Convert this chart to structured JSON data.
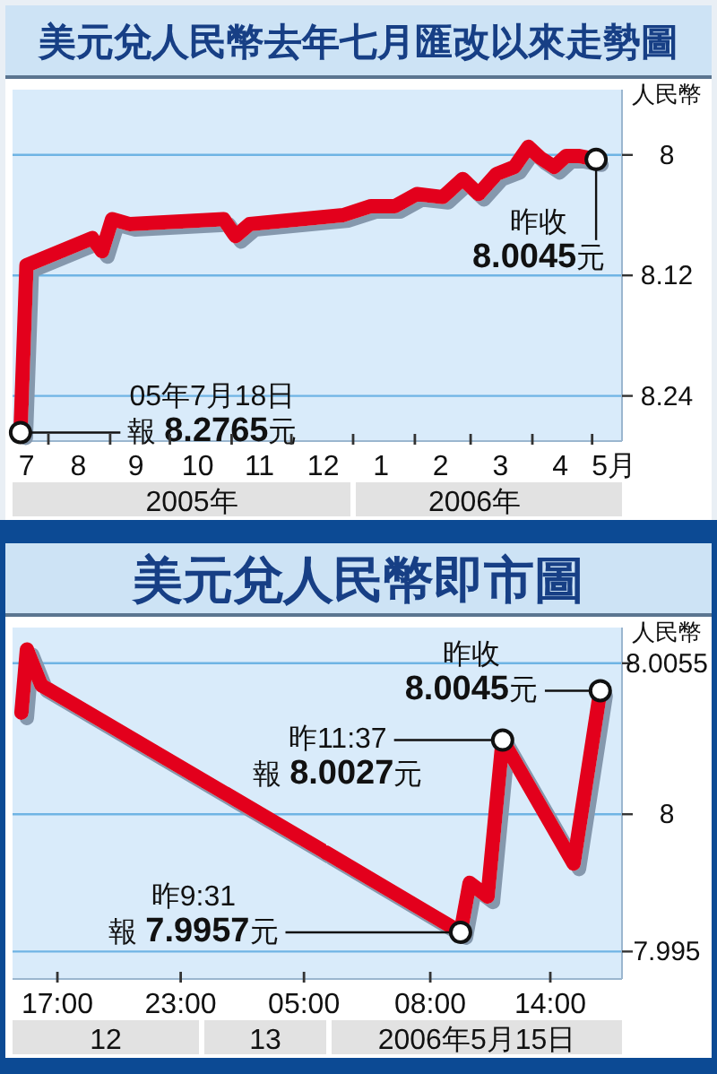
{
  "chart_data": [
    {
      "type": "line",
      "title": "美元兌人民幣去年七月匯改以來走勢圖",
      "ylabel": "人民幣",
      "x": [
        "2005-07-18",
        "2005-07-21",
        "2005-08-23",
        "2005-08-28",
        "2005-09-02",
        "2005-09-11",
        "2005-10-28",
        "2005-11-03",
        "2005-11-10",
        "2005-12-27",
        "2006-01-10",
        "2006-01-22",
        "2006-02-02",
        "2006-02-15",
        "2006-02-25",
        "2006-03-05",
        "2006-03-14",
        "2006-03-23",
        "2006-03-30",
        "2006-04-05",
        "2006-04-12",
        "2006-04-18",
        "2006-04-24",
        "2006-05-03"
      ],
      "series": [
        {
          "color": "#e3001b",
          "values": [
            8.2765,
            8.11,
            8.083,
            8.096,
            8.064,
            8.069,
            8.064,
            8.081,
            8.069,
            8.06,
            8.051,
            8.051,
            8.039,
            8.042,
            8.024,
            8.039,
            8.019,
            8.012,
            7.992,
            8.003,
            8.012,
            8.001,
            8.001,
            8.0045
          ]
        }
      ],
      "xlim": [
        "2005-07-14",
        "2006-05-16"
      ],
      "xticks": [
        {
          "value": "2005-07-21",
          "label": "7"
        },
        {
          "value": "2005-08-01",
          "label": null
        },
        {
          "value": "2005-08-16",
          "label": "8"
        },
        {
          "value": "2005-09-01",
          "label": null
        },
        {
          "value": "2005-09-14",
          "label": "9"
        },
        {
          "value": "2005-10-01",
          "label": null
        },
        {
          "value": "2005-10-15",
          "label": "10"
        },
        {
          "value": "2005-11-01",
          "label": null
        },
        {
          "value": "2005-11-15",
          "label": "11"
        },
        {
          "value": "2005-12-01",
          "label": null
        },
        {
          "value": "2005-12-17",
          "label": "12"
        },
        {
          "value": "2006-01-01",
          "label": null
        },
        {
          "value": "2006-01-15",
          "label": "1"
        },
        {
          "value": "2006-02-01",
          "label": null
        },
        {
          "value": "2006-02-14",
          "label": "2"
        },
        {
          "value": "2006-03-01",
          "label": null
        },
        {
          "value": "2006-03-16",
          "label": "3"
        },
        {
          "value": "2006-04-01",
          "label": null
        },
        {
          "value": "2006-04-15",
          "label": "4"
        },
        {
          "value": "2006-05-01",
          "label": null
        },
        {
          "value": "2006-05-12",
          "label": "5月"
        }
      ],
      "ylim": [
        8.285,
        7.935
      ],
      "yticks": [
        8,
        8.12,
        8.24
      ],
      "grid": "y",
      "x2lim": [
        "2005-07-14",
        "2006-05-16"
      ],
      "x2ticks": [
        {
          "value": "2005-10-12",
          "label": "2005年"
        },
        {
          "value": "2006-01-01",
          "label": null
        },
        {
          "value": "2006-03-03",
          "label": "2006年"
        }
      ],
      "annotations": [
        {
          "text": "05年7月18日報 8.2765元",
          "x": "2005-07-18",
          "y": 8.2765
        },
        {
          "text": "昨收8.0045元",
          "x": "2006-05-03",
          "y": 8.0045
        }
      ]
    },
    {
      "type": "line",
      "title": "美元兌人民幣即市圖",
      "x": [
        "2006-05-12T15:15",
        "2006-05-12T15:31",
        "2006-05-12T16:13",
        "2006-05-13T06:05"
      ],
      "series": [
        {
          "color": "#e3001b",
          "values": [
            8.0037,
            8.006,
            8.0047,
            7.9986
          ]
        }
      ],
      "xlim": [
        "2006-05-12T14:49",
        "2006-05-13T06:05"
      ],
      "xticks": [
        {
          "value": "2006-05-12T17:00",
          "label": "17:00"
        },
        {
          "value": "2006-05-12T23:00",
          "label": "23:00"
        },
        {
          "value": "2006-05-13T05:00",
          "label": "05:00"
        }
      ],
      "ylim": [
        7.994,
        8.0068
      ],
      "yticks": [
        7.995,
        8,
        8.0055
      ],
      "grid": "y",
      "tick_labels": "x",
      "annotations": [
        "12",
        "13"
      ]
    },
    {
      "type": "line",
      "ylabel": "人民幣",
      "x": [
        "2006-05-15T02:48",
        "2006-05-15T09:31",
        "2006-05-15T09:58",
        "2006-05-15T10:52",
        "2006-05-15T11:37",
        "2006-05-15T15:10",
        "2006-05-15T16:30"
      ],
      "series": [
        {
          "color": "#e3001b",
          "values": [
            7.9986,
            7.9957,
            7.9975,
            7.997,
            8.0027,
            7.9982,
            8.0045
          ]
        }
      ],
      "xlim": [
        "2006-05-15T02:48",
        "2006-05-15T17:35"
      ],
      "xticks": [
        {
          "value": "2006-05-15T08:00",
          "label": "08:00"
        },
        {
          "value": "2006-05-15T14:00",
          "label": "14:00"
        }
      ],
      "ylim": [
        7.994,
        8.0068
      ],
      "yticks": [
        7.995,
        8,
        8.0055
      ],
      "grid": "y",
      "annotations": [
        {
          "text": "昨收8.0045元",
          "x": "2006-05-15T16:30",
          "y": 8.0045
        },
        {
          "text": "昨11:37報 8.0027元",
          "x": "2006-05-15T11:37",
          "y": 8.0027
        },
        {
          "text": "昨9:31報 7.9957元",
          "x": "2006-05-15T09:31",
          "y": 7.9957
        },
        "2006年5月15日"
      ]
    }
  ]
}
